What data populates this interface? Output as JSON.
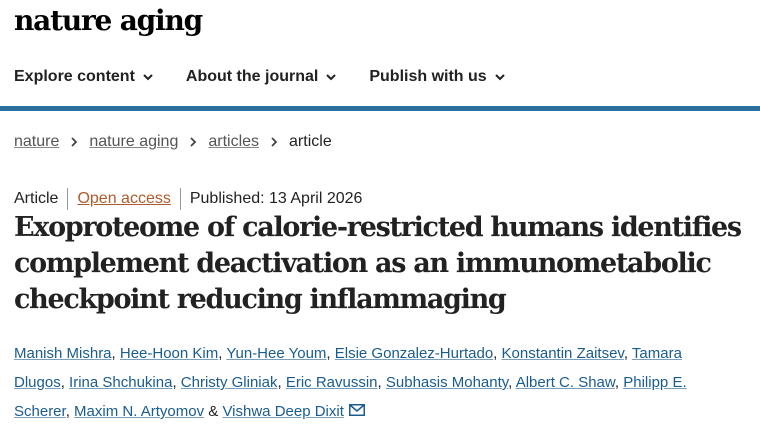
{
  "site": {
    "logo_text": "nature aging"
  },
  "nav": {
    "items": [
      {
        "label": "Explore content"
      },
      {
        "label": "About the journal"
      },
      {
        "label": "Publish with us"
      }
    ]
  },
  "breadcrumb": {
    "items": [
      {
        "label": "nature"
      },
      {
        "label": "nature aging"
      },
      {
        "label": "articles"
      }
    ],
    "current": "article"
  },
  "article": {
    "type": "Article",
    "access": "Open access",
    "published": "Published: 13 April 2026",
    "title_lines": [
      "Exoproteome of calorie-restricted humans identifies",
      "complement deactivation as an immunometabolic",
      "checkpoint reducing inflammaging"
    ],
    "authors": [
      "Manish Mishra",
      "Hee-Hoon Kim",
      "Yun-Hee Youm",
      "Elsie Gonzalez-Hurtado",
      "Konstantin Zaitsev",
      "Tamara Dlugos",
      "Irina Shchukina",
      "Christy Gliniak",
      "Eric Ravussin",
      "Subhasis Mohanty",
      "Albert C. Shaw",
      "Philipp E. Scherer",
      "Maxim N. Artyomov",
      "Vishwa Deep Dixit"
    ],
    "author_separator": ",",
    "author_conjunction": "&"
  },
  "colors": {
    "accent_blue": "#2c6e9e",
    "link_blue": "#1a5c8e",
    "open_access_orange": "#b05b2c"
  },
  "icons": {
    "nav_chevron": "chevron-down-icon",
    "breadcrumb_separator": "chevron-right-icon",
    "corresponding_author": "envelope-icon"
  }
}
